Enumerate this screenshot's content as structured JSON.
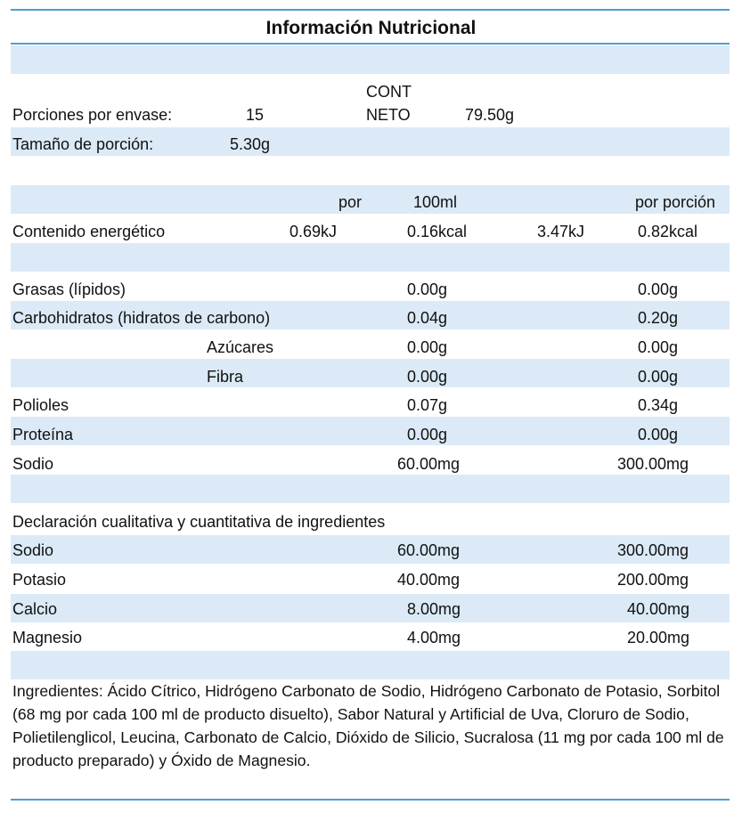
{
  "title": "Información Nutricional",
  "header": {
    "porciones_label": "Porciones por envase:",
    "porciones_value": "15",
    "cont_line1": "CONT",
    "cont_line2": "NETO",
    "cont_value": "79.50g",
    "tamano_label": "Tamaño de porción:",
    "tamano_value": "5.30g"
  },
  "columns": {
    "por": "por",
    "per100": "100ml",
    "por_porcion": "por porción"
  },
  "energia": {
    "label": "Contenido energético",
    "kj_100": "0.69kJ",
    "kcal_100": "0.16kcal",
    "kj_porcion": "3.47kJ",
    "kcal_porcion": "0.82kcal"
  },
  "nutrients": [
    {
      "label": "Grasas (lípidos)",
      "per100": "0.00g",
      "perPortion": "0.00g"
    },
    {
      "label": "Carbohidratos (hidratos de carbono)",
      "per100": "0.04g",
      "perPortion": "0.20g"
    },
    {
      "label": "Azúcares",
      "per100": "0.00g",
      "perPortion": "0.00g"
    },
    {
      "label": "Fibra",
      "per100": "0.00g",
      "perPortion": "0.00g"
    },
    {
      "label": "Polioles",
      "per100": "0.07g",
      "perPortion": "0.34g"
    },
    {
      "label": "Proteína",
      "per100": "0.00g",
      "perPortion": "0.00g"
    },
    {
      "label": "Sodio",
      "per100": "60.00mg",
      "perPortion": "300.00mg"
    }
  ],
  "declaracion": {
    "heading": "Declaración cualitativa y cuantitativa de ingredientes",
    "rows": [
      {
        "label": "Sodio",
        "per100": "60.00mg",
        "perPortion": "300.00mg"
      },
      {
        "label": "Potasio",
        "per100": "40.00mg",
        "perPortion": "200.00mg"
      },
      {
        "label": "Calcio",
        "per100": "8.00mg",
        "perPortion": "40.00mg"
      },
      {
        "label": "Magnesio",
        "per100": "4.00mg",
        "perPortion": "20.00mg"
      }
    ]
  },
  "ingredients": "Ingredientes: Ácido Cítrico, Hidrógeno Carbonato de Sodio, Hidrógeno Carbonato de Potasio, Sorbitol (68 mg por cada 100 ml de producto disuelto), Sabor Natural y Artificial de Uva, Cloruro de Sodio, Polietilenglicol, Leucina, Carbonato de Calcio, Dióxido de Silicio, Sucralosa (11 mg por cada 100 ml de producto preparado) y Óxido de Magnesio.",
  "colors": {
    "band": "#dbeaf6",
    "rule": "#4a9fd4"
  }
}
